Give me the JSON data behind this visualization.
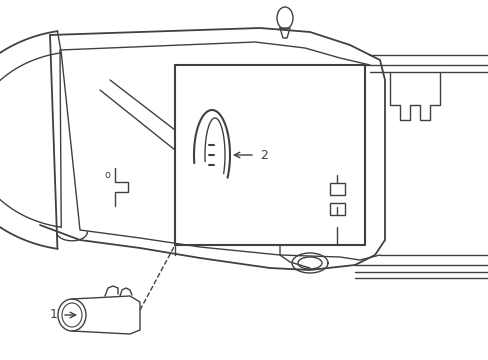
{
  "bg_color": "#ffffff",
  "line_color": "#404040",
  "line_width": 1.0,
  "fig_width": 4.89,
  "fig_height": 3.6,
  "dpi": 100,
  "label1_text": "1",
  "label2_text": "2",
  "label_o_text": "o"
}
